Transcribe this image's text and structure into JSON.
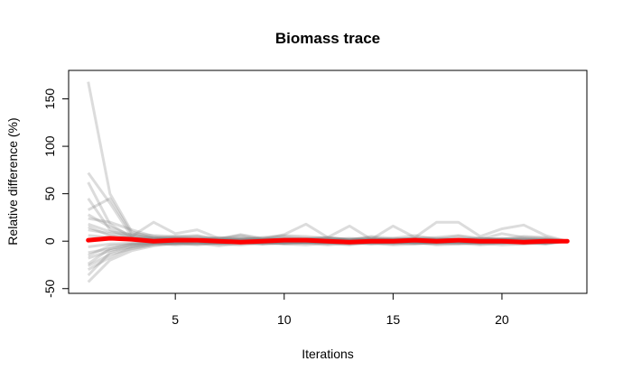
{
  "chart_data": {
    "type": "line",
    "title": "Biomass trace",
    "xlabel": "Iterations",
    "ylabel": "Relative difference (%)",
    "xlim": [
      0.1,
      23.9
    ],
    "ylim": [
      -55,
      180
    ],
    "x_ticks": [
      5,
      10,
      15,
      20
    ],
    "y_ticks": [
      -50,
      0,
      50,
      100,
      150
    ],
    "x_tick_labels": [
      "5",
      "10",
      "15",
      "20"
    ],
    "y_tick_labels": [
      "-50",
      "0",
      "50",
      "100",
      "150"
    ],
    "grid": false,
    "legend": "none",
    "x": [
      1,
      2,
      3,
      4,
      5,
      6,
      7,
      8,
      9,
      10,
      11,
      12,
      13,
      14,
      15,
      16,
      17,
      18,
      19,
      20,
      21,
      22,
      23
    ],
    "trace_color": "#808080",
    "mean_color": "#ff0000",
    "traces": [
      {
        "values": [
          168,
          50,
          10,
          3,
          2,
          1,
          0,
          1,
          0,
          0,
          1,
          0,
          0,
          1,
          0,
          1,
          0,
          0,
          1,
          0,
          0,
          0,
          0
        ]
      },
      {
        "values": [
          72,
          40,
          5,
          20,
          8,
          12,
          3,
          6,
          2,
          7,
          18,
          4,
          16,
          2,
          16,
          4,
          20,
          20,
          5,
          13,
          17,
          6,
          0
        ]
      },
      {
        "values": [
          62,
          18,
          4,
          2,
          4,
          2,
          1,
          3,
          2,
          2,
          3,
          1,
          2,
          1,
          3,
          2,
          1,
          2,
          1,
          2,
          2,
          1,
          0
        ]
      },
      {
        "values": [
          45,
          12,
          3,
          1,
          2,
          1,
          2,
          1,
          1,
          2,
          1,
          1,
          0,
          1,
          1,
          0,
          1,
          1,
          0,
          1,
          1,
          0,
          0
        ]
      },
      {
        "values": [
          33,
          45,
          8,
          6,
          5,
          4,
          3,
          4,
          2,
          3,
          2,
          2,
          3,
          2,
          2,
          3,
          2,
          2,
          3,
          2,
          2,
          2,
          0
        ]
      },
      {
        "values": [
          24,
          20,
          12,
          5,
          3,
          2,
          4,
          2,
          3,
          3,
          2,
          4,
          2,
          3,
          2,
          3,
          3,
          2,
          3,
          2,
          3,
          2,
          0
        ]
      },
      {
        "values": [
          18,
          10,
          7,
          3,
          5,
          6,
          2,
          7,
          3,
          5,
          3,
          4,
          1,
          5,
          3,
          6,
          2,
          5,
          2,
          8,
          4,
          3,
          0
        ]
      },
      {
        "values": [
          12,
          8,
          5,
          4,
          3,
          5,
          1,
          2,
          4,
          6,
          5,
          3,
          2,
          4,
          1,
          3,
          4,
          6,
          3,
          2,
          5,
          4,
          0
        ]
      },
      {
        "values": [
          6,
          4,
          2,
          3,
          1,
          2,
          3,
          1,
          2,
          1,
          2,
          3,
          1,
          2,
          1,
          2,
          1,
          1,
          2,
          3,
          1,
          2,
          0
        ]
      },
      {
        "values": [
          -6,
          -3,
          -2,
          -1,
          -2,
          -1,
          -3,
          -1,
          -2,
          -1,
          -2,
          -1,
          -1,
          -2,
          -1,
          -2,
          -1,
          -1,
          -2,
          -1,
          -2,
          -1,
          0
        ]
      },
      {
        "values": [
          -12,
          -8,
          -4,
          -2,
          -3,
          -1,
          -2,
          -3,
          -1,
          -2,
          -1,
          -3,
          -1,
          -2,
          -3,
          -1,
          -2,
          -1,
          -3,
          -2,
          -1,
          -2,
          0
        ]
      },
      {
        "values": [
          -18,
          -10,
          -6,
          -3,
          -2,
          -4,
          -2,
          -1,
          -3,
          -2,
          -1,
          -2,
          -4,
          -1,
          -2,
          -3,
          -1,
          -2,
          -1,
          -2,
          -3,
          -1,
          0
        ]
      },
      {
        "values": [
          -26,
          -14,
          -8,
          -4,
          -3,
          -2,
          -5,
          -2,
          -3,
          -1,
          -2,
          -4,
          -2,
          -3,
          -1,
          -2,
          -3,
          -2,
          -4,
          -2,
          -1,
          -3,
          0
        ]
      },
      {
        "values": [
          -30,
          -17,
          -7,
          -3,
          -1,
          -2,
          -3,
          -4,
          -2,
          -3,
          -2,
          -1,
          -3,
          -2,
          -4,
          -3,
          -2,
          -1,
          -2,
          -4,
          -3,
          -2,
          0
        ]
      },
      {
        "values": [
          -36,
          -12,
          -5,
          -2,
          -4,
          -3,
          -1,
          -2,
          -1,
          -3,
          -4,
          -2,
          -1,
          -3,
          -2,
          -1,
          -4,
          -3,
          -2,
          -1,
          -2,
          -3,
          0
        ]
      },
      {
        "values": [
          -43,
          -20,
          -10,
          -5,
          -2,
          -3,
          -2,
          -1,
          -3,
          -2,
          -1,
          -2,
          -3,
          -1,
          -2,
          -1,
          -2,
          -3,
          -1,
          -2,
          -1,
          -2,
          0
        ]
      },
      {
        "values": [
          -24,
          -8,
          -3,
          -1,
          -2,
          0,
          -1,
          1,
          -1,
          0,
          -1,
          1,
          0,
          -1,
          0,
          1,
          -1,
          0,
          1,
          -1,
          0,
          1,
          0
        ]
      },
      {
        "values": [
          15,
          6,
          3,
          2,
          1,
          2,
          1,
          2,
          1,
          1,
          2,
          1,
          1,
          2,
          1,
          1,
          2,
          1,
          1,
          2,
          1,
          1,
          0
        ]
      },
      {
        "values": [
          -15,
          -5,
          -3,
          -2,
          -1,
          -1,
          -2,
          -1,
          -1,
          -2,
          -1,
          -1,
          -2,
          -1,
          -1,
          -2,
          -1,
          -1,
          -2,
          -1,
          -1,
          -2,
          0
        ]
      },
      {
        "values": [
          28,
          15,
          6,
          3,
          2,
          2,
          1,
          2,
          2,
          1,
          2,
          2,
          1,
          2,
          2,
          1,
          2,
          2,
          1,
          2,
          2,
          1,
          0
        ]
      }
    ],
    "mean_series": {
      "values": [
        1,
        3,
        2,
        0,
        1,
        1,
        0,
        -1,
        0,
        1,
        1,
        0,
        -1,
        0,
        0,
        1,
        0,
        1,
        0,
        0,
        -1,
        0,
        0
      ]
    }
  }
}
